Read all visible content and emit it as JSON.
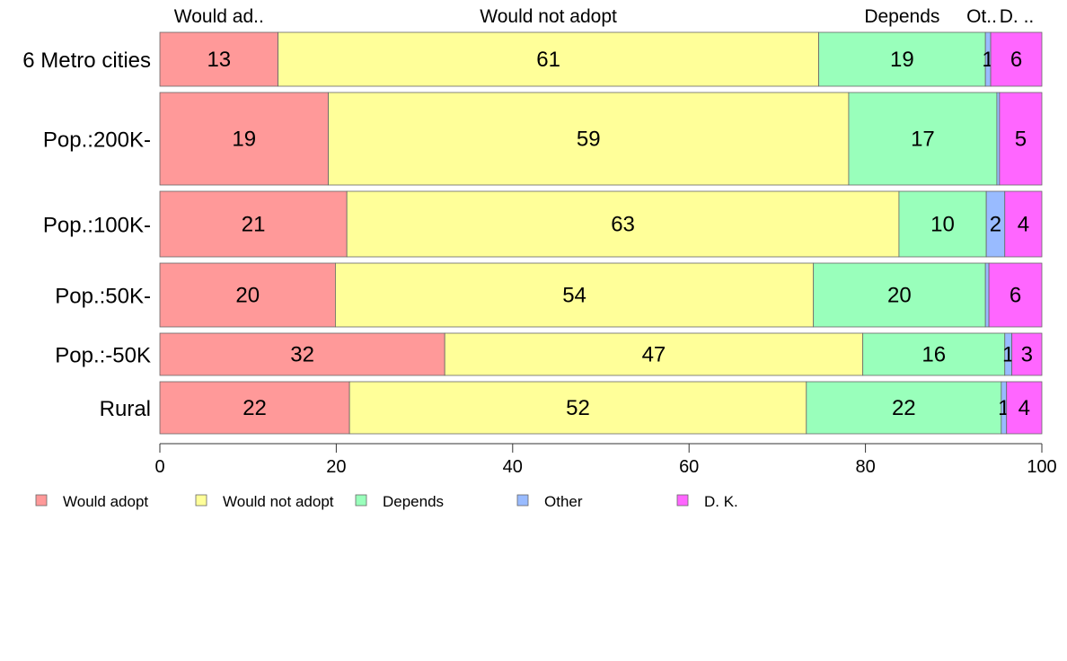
{
  "chart_data": {
    "type": "bar",
    "orientation": "horizontal",
    "stacked": true,
    "categories": [
      "6 Metro cities",
      "Pop.:200K-",
      "Pop.:100K-",
      "Pop.:50K-",
      "Pop.:-50K",
      "Rural"
    ],
    "series": [
      {
        "name": "Would adopt",
        "top_label": "Would ad..",
        "color": "#FF9999",
        "values": [
          13.4,
          19.1,
          21.2,
          19.9,
          32.3,
          21.5
        ],
        "labels": [
          "13",
          "19",
          "21",
          "20",
          "32",
          "22"
        ]
      },
      {
        "name": "Would not adopt",
        "top_label": "Would not adopt",
        "color": "#FFFF99",
        "values": [
          61.3,
          59.0,
          62.6,
          54.2,
          47.4,
          51.8
        ],
        "labels": [
          "61",
          "59",
          "63",
          "54",
          "47",
          "52"
        ]
      },
      {
        "name": "Depends",
        "top_label": "Depends",
        "color": "#99FFBB",
        "values": [
          18.9,
          16.8,
          9.9,
          19.5,
          16.1,
          22.1
        ],
        "labels": [
          "19",
          "17",
          "10",
          "20",
          "16",
          "22"
        ]
      },
      {
        "name": "Other",
        "top_label": "Ot..",
        "color": "#99BBFF",
        "values": [
          0.6,
          0.3,
          2.1,
          0.4,
          0.8,
          0.6
        ],
        "labels": [
          "1",
          "",
          "2",
          "",
          "1",
          "1"
        ]
      },
      {
        "name": "D. K.",
        "top_label": "D. ..",
        "color": "#FF66FF",
        "values": [
          5.8,
          4.8,
          4.2,
          6.0,
          3.4,
          4.0
        ],
        "labels": [
          "6",
          "5",
          "4",
          "6",
          "3",
          "4"
        ]
      }
    ],
    "xlim": [
      0,
      100
    ],
    "xticks": [
      0,
      20,
      40,
      60,
      80,
      100
    ],
    "legend": "bottom",
    "grid": false
  }
}
